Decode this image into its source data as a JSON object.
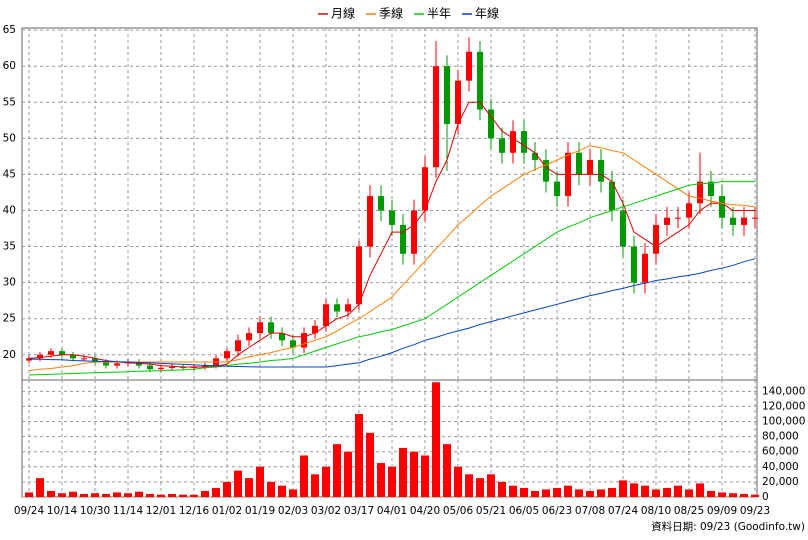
{
  "chart_data": [
    {
      "type": "candlestick",
      "categories": [
        "09/24",
        null,
        null,
        "10/14",
        null,
        null,
        "10/30",
        null,
        null,
        "11/14",
        null,
        null,
        "12/01",
        null,
        null,
        "12/16",
        null,
        null,
        "01/02",
        null,
        null,
        "01/19",
        null,
        null,
        "02/03",
        null,
        null,
        "03/02",
        null,
        null,
        "03/17",
        null,
        null,
        "04/01",
        null,
        null,
        "04/20",
        null,
        null,
        "05/06",
        null,
        null,
        "05/21",
        null,
        null,
        "06/05",
        null,
        null,
        "06/23",
        null,
        null,
        "07/08",
        null,
        null,
        "07/24",
        null,
        null,
        "08/10",
        null,
        null,
        "08/25",
        null,
        null,
        "09/09",
        null,
        null,
        "09/23"
      ],
      "open": [
        19.2,
        19.5,
        20,
        20.5,
        20,
        19.5,
        19.5,
        19,
        18.5,
        18.8,
        19,
        18.5,
        18,
        18.2,
        18.3,
        18.2,
        18.3,
        18.5,
        19.5,
        20.5,
        22,
        23,
        24.5,
        23,
        22,
        21,
        23,
        24,
        27,
        26,
        27,
        35,
        42,
        40,
        38,
        34,
        40,
        46,
        60,
        52,
        58,
        62,
        54,
        50,
        48,
        51,
        48,
        47,
        44,
        42,
        48,
        45,
        47,
        44,
        40,
        35,
        30,
        34,
        38,
        39,
        39,
        41,
        44,
        42,
        39,
        38,
        39
      ],
      "high": [
        19.9,
        20.4,
        20.9,
        20.9,
        20.4,
        19.9,
        19.9,
        19.4,
        19.2,
        19.4,
        19.4,
        18.9,
        18.6,
        18.7,
        18.7,
        18.7,
        18.9,
        19.9,
        20.9,
        22.8,
        23.8,
        25.3,
        25.3,
        23.8,
        22.8,
        23.8,
        24.8,
        27.8,
        27.8,
        27.8,
        35.8,
        43.5,
        43.5,
        41.5,
        39.5,
        41.5,
        47.5,
        63.5,
        61.5,
        59.5,
        64,
        63.5,
        55.5,
        51.5,
        52.5,
        52.5,
        49.5,
        48.5,
        45.5,
        49.5,
        49.5,
        48.5,
        48.5,
        45.5,
        41.5,
        36.5,
        35.5,
        39.5,
        40.5,
        40.5,
        42.5,
        48,
        45.5,
        43.5,
        40.5,
        40.5,
        40.5
      ],
      "low": [
        18.8,
        19.1,
        19.6,
        19.6,
        19.1,
        19.1,
        18.6,
        18.1,
        18.1,
        18.4,
        18.1,
        17.6,
        17.6,
        17.8,
        17.8,
        17.8,
        17.9,
        18.1,
        19.1,
        19.7,
        21.2,
        22.2,
        22.2,
        21.2,
        20.2,
        20.2,
        22.2,
        23.2,
        25.2,
        25.2,
        26.2,
        33.5,
        38.5,
        36.5,
        32.5,
        32.5,
        38.5,
        44.5,
        45.5,
        50.5,
        56.5,
        52.5,
        48.5,
        46.5,
        46.5,
        46.5,
        45.5,
        42.5,
        40.5,
        40.5,
        43.5,
        43.5,
        42.5,
        38.5,
        33.5,
        28.5,
        28.5,
        32.5,
        36.5,
        37.5,
        37.5,
        39.5,
        40.5,
        37.5,
        36.5,
        36.5,
        37.5
      ],
      "close": [
        19.5,
        20,
        20.5,
        20,
        19.5,
        19.5,
        19,
        18.5,
        18.8,
        19,
        18.5,
        18,
        18.2,
        18.3,
        18.2,
        18.3,
        18.5,
        19.5,
        20.5,
        22,
        23,
        24.5,
        23,
        22,
        21,
        23,
        24,
        27,
        26,
        27,
        35,
        42,
        40,
        38,
        34,
        40,
        46,
        60,
        52,
        58,
        62,
        54,
        50,
        48,
        51,
        48,
        47,
        44,
        42,
        48,
        45,
        47,
        44,
        40,
        35,
        30,
        34,
        38,
        39,
        39,
        41,
        44,
        42,
        39,
        38,
        39,
        39
      ],
      "up_color": "#ff0000",
      "down_color": "#009900",
      "series": [
        {
          "name": "月線",
          "color": "#e00000",
          "values": [
            19.5,
            19.6,
            19.8,
            20,
            20,
            19.8,
            19.5,
            19.2,
            19,
            18.9,
            18.8,
            18.7,
            18.5,
            18.4,
            18.3,
            18.3,
            18.3,
            18.4,
            18.7,
            20,
            21,
            22,
            23,
            23,
            22.5,
            22.5,
            23,
            24,
            25,
            25.5,
            27,
            31,
            34,
            37,
            37,
            38,
            40,
            44,
            47,
            52,
            55,
            55,
            53,
            51,
            50,
            49,
            48,
            46,
            45,
            45,
            45,
            45,
            45,
            44,
            41,
            37,
            36,
            35,
            36,
            37,
            38,
            40,
            41,
            41,
            40,
            40,
            40
          ]
        },
        {
          "name": "季線",
          "color": "#ff7f00",
          "values": [
            17.8,
            18,
            18.1,
            18.3,
            18.5,
            18.8,
            19,
            19,
            19,
            19,
            19,
            19,
            19,
            19,
            19,
            19,
            19,
            19,
            19,
            19.3,
            19.7,
            20,
            20.3,
            20.7,
            21,
            21.5,
            22,
            22.5,
            23.3,
            24.2,
            25,
            26,
            27,
            28,
            29.7,
            31.3,
            33,
            34.7,
            36.3,
            38,
            39.3,
            40.7,
            42,
            43,
            44,
            45,
            45.7,
            46.3,
            47,
            47.7,
            48.3,
            49,
            48.7,
            48.3,
            48,
            47,
            46,
            45,
            44,
            43,
            42,
            41.7,
            41.3,
            41,
            40.8,
            40.7,
            40.5
          ]
        },
        {
          "name": "半年",
          "color": "#00cc00",
          "values": [
            17.2,
            17.25,
            17.3,
            17.35,
            17.4,
            17.45,
            17.5,
            17.55,
            17.6,
            17.65,
            17.7,
            17.75,
            17.8,
            17.85,
            17.9,
            18,
            18.2,
            18.3,
            18.5,
            18.7,
            18.8,
            19,
            19.2,
            19.3,
            19.5,
            20,
            20.5,
            21,
            21.5,
            22,
            22.5,
            22.8,
            23.2,
            23.5,
            24,
            24.5,
            25,
            26,
            27,
            28,
            29,
            30,
            31,
            32,
            33,
            34,
            35,
            36,
            37,
            37.7,
            38.3,
            39,
            39.5,
            40,
            40.5,
            41,
            41.5,
            42,
            42.5,
            43,
            43.5,
            43.7,
            43.8,
            44,
            44,
            44,
            44
          ]
        },
        {
          "name": "年線",
          "color": "#0044cc",
          "values": [
            19.4,
            19.37,
            19.33,
            19.3,
            19.2,
            19.15,
            19.1,
            19.07,
            19.03,
            19,
            18.93,
            18.87,
            18.8,
            18.73,
            18.67,
            18.6,
            18.53,
            18.47,
            18.4,
            18.37,
            18.33,
            18.3,
            18.3,
            18.3,
            18.3,
            18.3,
            18.3,
            18.3,
            18.5,
            18.7,
            18.9,
            19.4,
            19.8,
            20.3,
            20.9,
            21.4,
            22,
            22.4,
            22.9,
            23.3,
            23.7,
            24.2,
            24.6,
            25,
            25.4,
            25.8,
            26.2,
            26.6,
            27,
            27.4,
            27.8,
            28.2,
            28.5,
            28.9,
            29.2,
            29.6,
            29.9,
            30.3,
            30.5,
            30.8,
            31,
            31.3,
            31.7,
            32,
            32.4,
            32.9,
            33.3
          ]
        }
      ],
      "ylim": [
        16.5,
        65.3
      ],
      "yticks": [
        20,
        25,
        30,
        35,
        40,
        45,
        50,
        55,
        60,
        65
      ],
      "grid": true
    },
    {
      "type": "bar",
      "color": "#ff0000",
      "values": [
        6000,
        25000,
        8000,
        5000,
        7000,
        4000,
        5000,
        4000,
        6000,
        5000,
        7000,
        4000,
        3000,
        4000,
        3000,
        3000,
        8000,
        12000,
        20000,
        35000,
        25000,
        40000,
        20000,
        15000,
        10000,
        55000,
        30000,
        40000,
        70000,
        60000,
        110000,
        85000,
        45000,
        40000,
        65000,
        60000,
        55000,
        152000,
        70000,
        40000,
        30000,
        25000,
        30000,
        20000,
        15000,
        12000,
        8000,
        10000,
        12000,
        15000,
        10000,
        8000,
        10000,
        12000,
        22000,
        18000,
        15000,
        10000,
        12000,
        15000,
        10000,
        18000,
        8000,
        6000,
        5000,
        4000,
        3000
      ],
      "ylim": [
        0,
        155000
      ],
      "yticks": [
        0,
        {
          "value": 20000,
          "label": "20,000"
        },
        {
          "value": 40000,
          "label": "40,000"
        },
        {
          "value": 60000,
          "label": "60,000"
        },
        {
          "value": 80000,
          "label": "80,000"
        },
        {
          "value": 100000,
          "label": "100,000"
        },
        {
          "value": 120000,
          "label": "120,000"
        },
        {
          "value": 140000,
          "label": "140,000"
        }
      ],
      "grid": true
    }
  ],
  "footer": {
    "date": "資料日期: 09/23",
    "source": "(Goodinfo.tw)"
  }
}
